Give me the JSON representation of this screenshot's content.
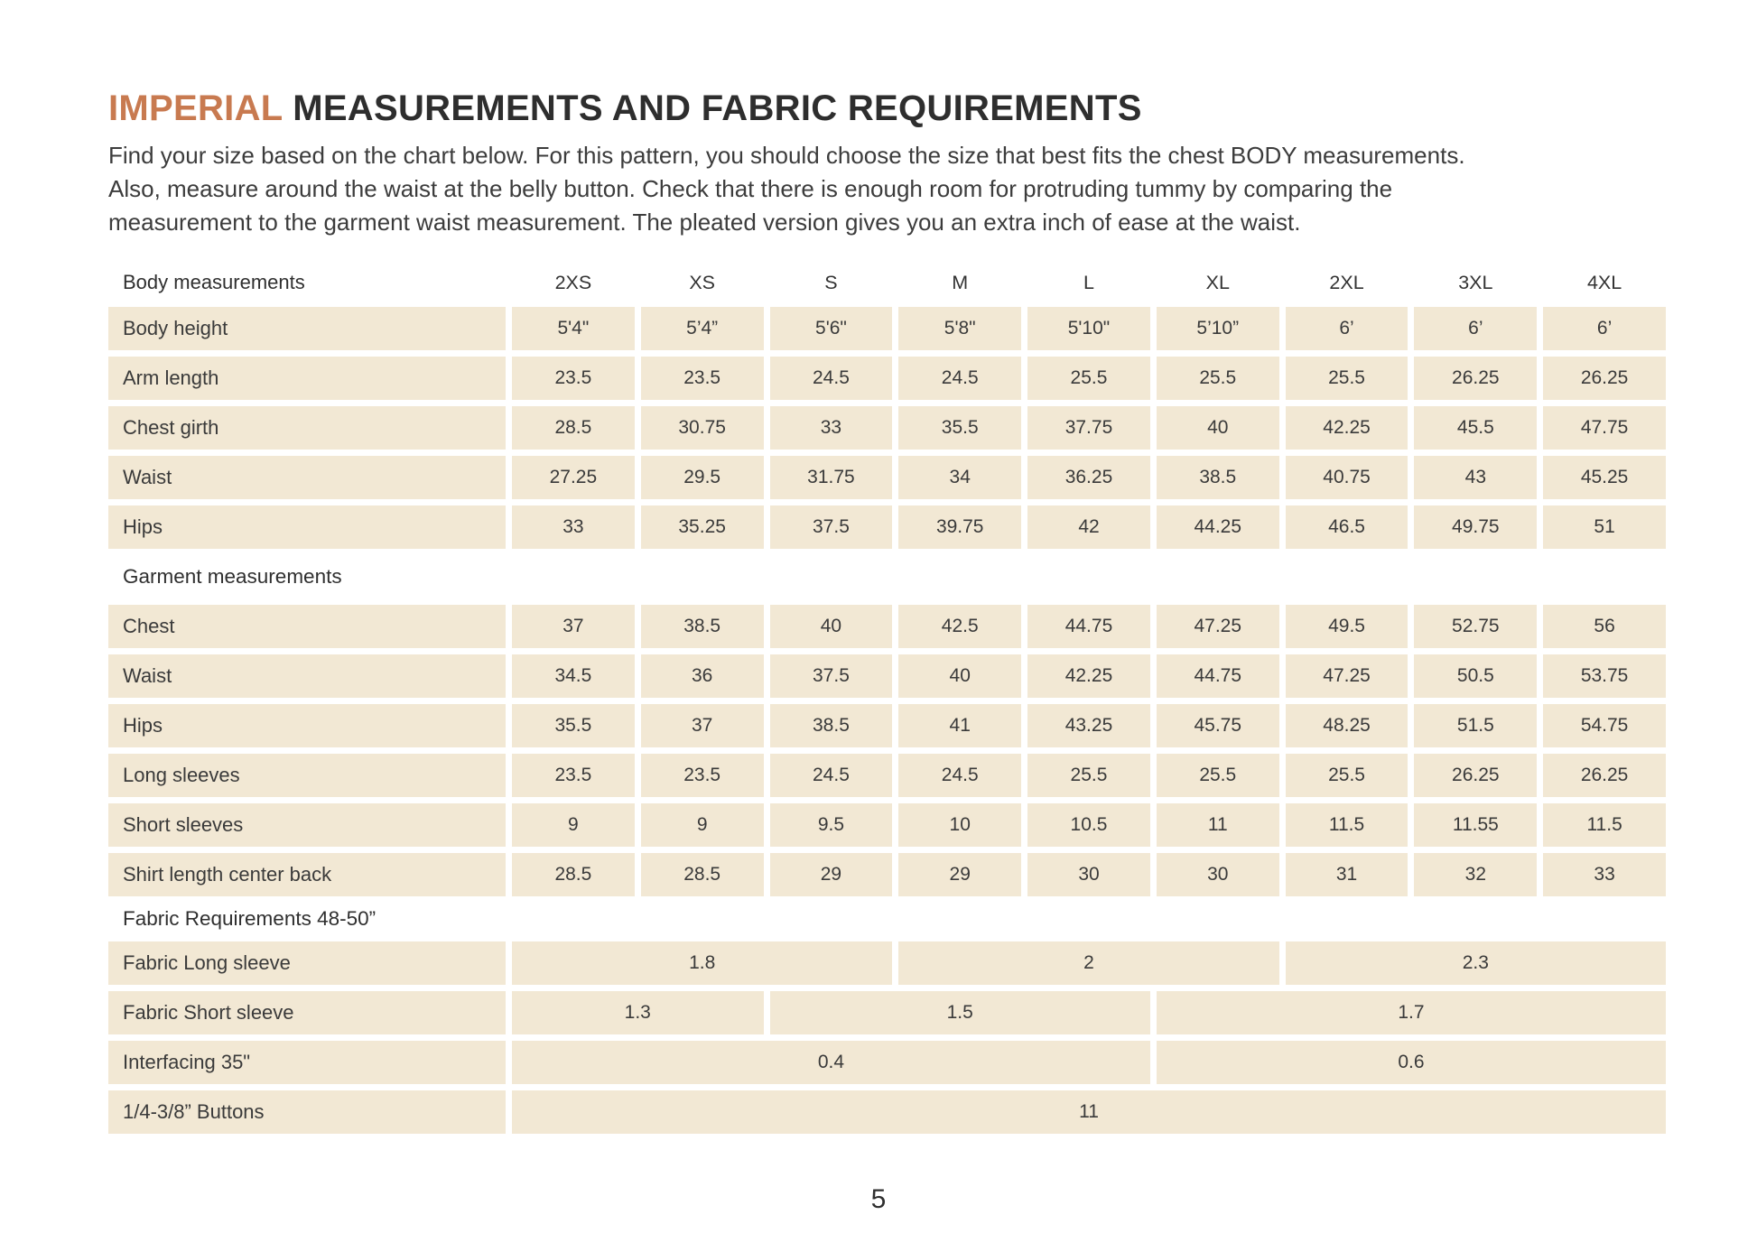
{
  "page": {
    "title_highlight": "IMPERIAL",
    "title_rest": " MEASUREMENTS AND FABRIC REQUIREMENTS",
    "intro_lines": [
      "Find your size based on the chart below. For this pattern, you should choose the size that best fits the chest BODY measurements.",
      "Also, measure around the waist at the belly button. Check that there is enough room for protruding tummy by comparing the",
      "measurement to the garment waist measurement. The pleated version gives you an extra inch of ease at the waist."
    ],
    "page_number": "5"
  },
  "colors": {
    "accent": "#c87a50",
    "heading": "#2e2e2e",
    "row_band": "#f2e8d4"
  },
  "table": {
    "sizes": [
      "2XS",
      "XS",
      "S",
      "M",
      "L",
      "XL",
      "2XL",
      "3XL",
      "4XL"
    ],
    "rows": [
      {
        "type": "sizes-header",
        "label": "Body measurements"
      },
      {
        "type": "data",
        "label": "Body height",
        "values": [
          "5'4\"",
          "5’4”",
          "5'6\"",
          "5'8\"",
          "5'10\"",
          "5’10”",
          "6’",
          "6’",
          "6’"
        ]
      },
      {
        "type": "data",
        "label": "Arm length",
        "values": [
          "23.5",
          "23.5",
          "24.5",
          "24.5",
          "25.5",
          "25.5",
          "25.5",
          "26.25",
          "26.25"
        ]
      },
      {
        "type": "data",
        "label": "Chest girth",
        "values": [
          "28.5",
          "30.75",
          "33",
          "35.5",
          "37.75",
          "40",
          "42.25",
          "45.5",
          "47.75"
        ]
      },
      {
        "type": "data",
        "label": "Waist",
        "values": [
          "27.25",
          "29.5",
          "31.75",
          "34",
          "36.25",
          "38.5",
          "40.75",
          "43",
          "45.25"
        ]
      },
      {
        "type": "data",
        "label": "Hips",
        "values": [
          "33",
          "35.25",
          "37.5",
          "39.75",
          "42",
          "44.25",
          "46.5",
          "49.75",
          "51"
        ]
      },
      {
        "type": "section",
        "label": "Garment measurements"
      },
      {
        "type": "data",
        "label": "Chest",
        "values": [
          "37",
          "38.5",
          "40",
          "42.5",
          "44.75",
          "47.25",
          "49.5",
          "52.75",
          "56"
        ]
      },
      {
        "type": "data",
        "label": "Waist",
        "values": [
          "34.5",
          "36",
          "37.5",
          "40",
          "42.25",
          "44.75",
          "47.25",
          "50.5",
          "53.75"
        ]
      },
      {
        "type": "data",
        "label": "Hips",
        "values": [
          "35.5",
          "37",
          "38.5",
          "41",
          "43.25",
          "45.75",
          "48.25",
          "51.5",
          "54.75"
        ]
      },
      {
        "type": "data",
        "label": "Long sleeves",
        "values": [
          "23.5",
          "23.5",
          "24.5",
          "24.5",
          "25.5",
          "25.5",
          "25.5",
          "26.25",
          "26.25"
        ]
      },
      {
        "type": "data",
        "label": "Short sleeves",
        "values": [
          "9",
          "9",
          "9.5",
          "10",
          "10.5",
          "11",
          "11.5",
          "11.55",
          "11.5"
        ]
      },
      {
        "type": "data",
        "label": "Shirt length center back",
        "values": [
          "28.5",
          "28.5",
          "29",
          "29",
          "30",
          "30",
          "31",
          "32",
          "33"
        ]
      },
      {
        "type": "section",
        "label": "Fabric Requirements 48-50”",
        "compact": true
      },
      {
        "type": "merged",
        "label": "Fabric Long sleeve",
        "cells": [
          {
            "value": "1.8",
            "span": 3
          },
          {
            "value": "2",
            "span": 3
          },
          {
            "value": "2.3",
            "span": 3
          }
        ]
      },
      {
        "type": "merged",
        "label": "Fabric Short sleeve",
        "cells": [
          {
            "value": "1.3",
            "span": 2
          },
          {
            "value": "1.5",
            "span": 3
          },
          {
            "value": "1.7",
            "span": 4
          }
        ]
      },
      {
        "type": "merged",
        "label": "Interfacing 35\"",
        "cells": [
          {
            "value": "0.4",
            "span": 5
          },
          {
            "value": "0.6",
            "span": 4
          }
        ]
      },
      {
        "type": "merged",
        "label": "1/4-3/8” Buttons",
        "cells": [
          {
            "value": "11",
            "span": 9
          }
        ]
      }
    ]
  }
}
